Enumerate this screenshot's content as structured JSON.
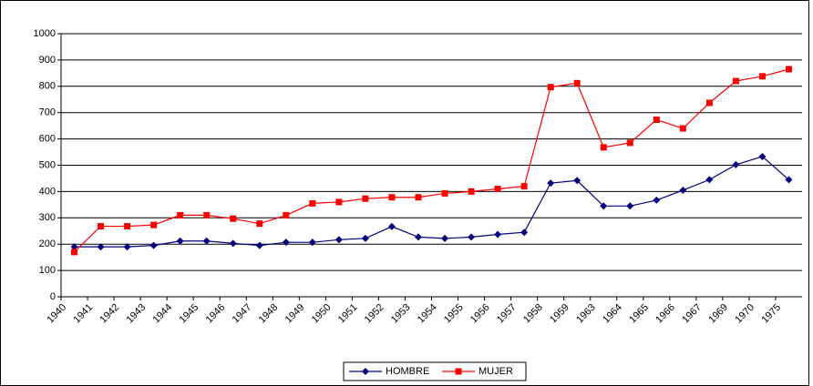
{
  "chart_data": {
    "type": "line",
    "categories": [
      "1940",
      "1941",
      "1942",
      "1943",
      "1944",
      "1945",
      "1946",
      "1947",
      "1948",
      "1949",
      "1950",
      "1951",
      "1952",
      "1953",
      "1954",
      "1955",
      "1956",
      "1957",
      "1958",
      "1959",
      "1963",
      "1964",
      "1965",
      "1966",
      "1967",
      "1969",
      "1970",
      "1975"
    ],
    "series": [
      {
        "name": "HOMBRE",
        "color": "#000080",
        "marker": "diamond",
        "values": [
          190,
          190,
          190,
          195,
          212,
          212,
          203,
          195,
          207,
          207,
          217,
          222,
          267,
          227,
          222,
          227,
          237,
          245,
          432,
          442,
          345,
          345,
          367,
          405,
          445,
          502,
          533,
          445
        ]
      },
      {
        "name": "MUJER",
        "color": "#ff0000",
        "marker": "square",
        "values": [
          170,
          268,
          268,
          273,
          310,
          310,
          297,
          278,
          310,
          355,
          360,
          373,
          378,
          378,
          393,
          400,
          410,
          420,
          797,
          812,
          568,
          585,
          673,
          640,
          737,
          820,
          838,
          865
        ]
      }
    ],
    "ylim": [
      0,
      1000
    ],
    "yticks": [
      0,
      100,
      200,
      300,
      400,
      500,
      600,
      700,
      800,
      900,
      1000
    ],
    "grid": true,
    "legend": "bottom"
  }
}
